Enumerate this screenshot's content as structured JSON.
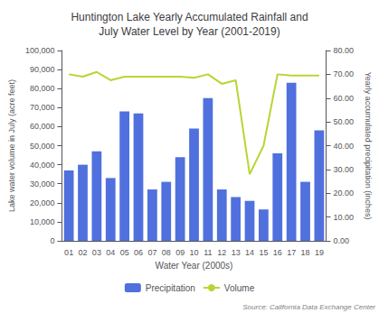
{
  "chart_data": {
    "type": "bar",
    "title": "Huntington Lake Yearly Accumulated Rainfall and\nJuly Water Level by Year (2001-2019)",
    "xlabel": "Water Year (2000s)",
    "ylabel": "Lake water volume in July (acre feet)",
    "y2label": "Yearly accumulated precipitation (inches)",
    "annotations": [
      "Source: California Data Exchange Center"
    ],
    "categories": [
      "01",
      "02",
      "03",
      "04",
      "05",
      "06",
      "07",
      "08",
      "09",
      "10",
      "11",
      "12",
      "13",
      "14",
      "15",
      "16",
      "17",
      "18",
      "19"
    ],
    "series": [
      {
        "name": "Precipitation",
        "type": "bar",
        "values": [
          37000,
          40000,
          47000,
          33000,
          68000,
          67000,
          27000,
          31000,
          44000,
          59000,
          75000,
          27000,
          23000,
          21000,
          16500,
          46000,
          83000,
          31000,
          58000
        ]
      },
      {
        "name": "Volume",
        "type": "line",
        "axis": "y2",
        "values": [
          70.0,
          69.0,
          71.0,
          67.5,
          69.0,
          69.0,
          69.0,
          69.0,
          69.0,
          68.5,
          70.0,
          66.0,
          67.5,
          28.0,
          40.0,
          70.0,
          69.5,
          69.5,
          69.5
        ]
      }
    ],
    "ylim": [
      0,
      100000
    ],
    "yticks": [
      0,
      {
        "value": 10000,
        "label": "10,000"
      },
      {
        "value": 20000,
        "label": "20,000"
      },
      {
        "value": 30000,
        "label": "30,000"
      },
      {
        "value": 40000,
        "label": "40,000"
      },
      {
        "value": 50000,
        "label": "50,000"
      },
      {
        "value": 60000,
        "label": "60,000"
      },
      {
        "value": 70000,
        "label": "70,000"
      },
      {
        "value": 80000,
        "label": "80,000"
      },
      {
        "value": 90000,
        "label": "90,000"
      },
      {
        "value": 100000,
        "label": "100,000"
      }
    ],
    "y2lim": [
      0.0,
      80.0
    ],
    "y2ticks": [
      {
        "value": 0,
        "label": "0.00"
      },
      {
        "value": 10,
        "label": "10.00"
      },
      {
        "value": 20,
        "label": "20.00"
      },
      {
        "value": 30,
        "label": "30.00"
      },
      {
        "value": 40,
        "label": "40.00"
      },
      {
        "value": 50,
        "label": "50.00"
      },
      {
        "value": 60,
        "label": "60.00"
      },
      {
        "value": 70,
        "label": "70.00"
      },
      {
        "value": 80,
        "label": "80.00"
      }
    ],
    "grid": false,
    "legend": "bottom"
  }
}
